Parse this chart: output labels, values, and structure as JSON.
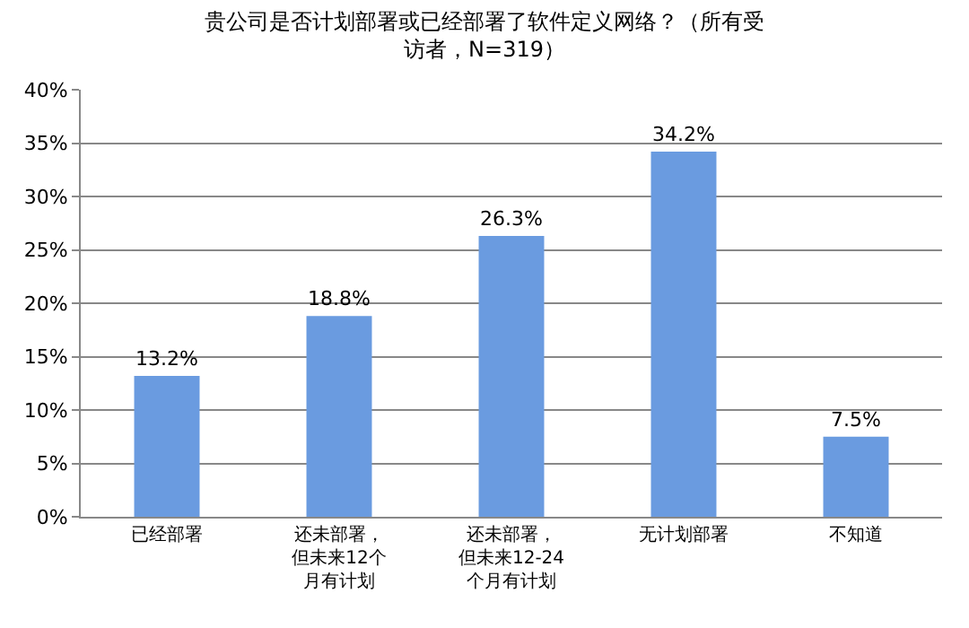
{
  "chart_data": {
    "type": "bar",
    "title": "贵公司是否计划部署或已经部署了软件定义网络？（所有受访者，N=319）",
    "categories": [
      "已经部署",
      "还未部署，但未来12个月有计划",
      "还未部署，但未来12-24个月有计划",
      "无计划部署",
      "不知道"
    ],
    "values": [
      13.2,
      18.8,
      26.3,
      34.2,
      7.5
    ],
    "value_labels": [
      "13.2%",
      "18.8%",
      "26.3%",
      "34.2%",
      "7.5%"
    ],
    "color": "#6a9be0",
    "ylim": [
      0,
      40
    ],
    "yticks": [
      {
        "value": 0,
        "label": "0%"
      },
      {
        "value": 5,
        "label": "5%"
      },
      {
        "value": 10,
        "label": "10%"
      },
      {
        "value": 15,
        "label": "15%"
      },
      {
        "value": 20,
        "label": "20%"
      },
      {
        "value": 25,
        "label": "25%"
      },
      {
        "value": 30,
        "label": "30%"
      },
      {
        "value": 35,
        "label": "35%"
      },
      {
        "value": 40,
        "label": "40%"
      }
    ],
    "grid": "y"
  }
}
